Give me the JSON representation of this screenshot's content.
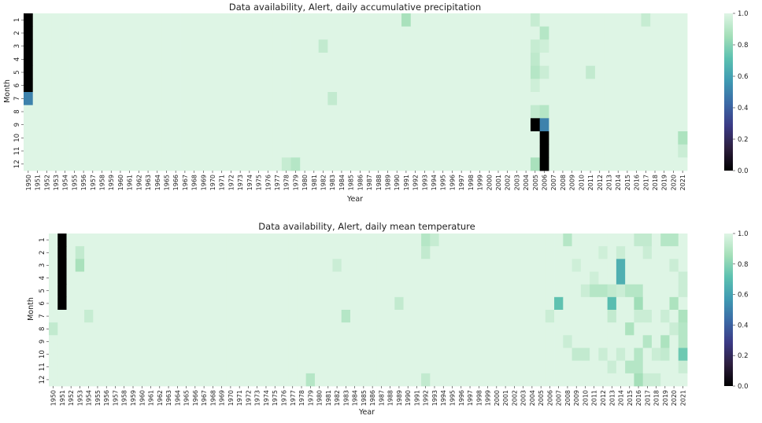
{
  "years": [
    "1950",
    "1951",
    "1952",
    "1953",
    "1954",
    "1955",
    "1956",
    "1957",
    "1958",
    "1959",
    "1960",
    "1961",
    "1962",
    "1963",
    "1964",
    "1965",
    "1966",
    "1967",
    "1968",
    "1969",
    "1970",
    "1971",
    "1972",
    "1973",
    "1974",
    "1975",
    "1976",
    "1977",
    "1978",
    "1979",
    "1980",
    "1981",
    "1982",
    "1983",
    "1984",
    "1985",
    "1986",
    "1987",
    "1988",
    "1989",
    "1990",
    "1991",
    "1992",
    "1993",
    "1994",
    "1995",
    "1996",
    "1997",
    "1998",
    "1999",
    "2000",
    "2001",
    "2002",
    "2003",
    "2004",
    "2005",
    "2006",
    "2007",
    "2008",
    "2009",
    "2010",
    "2011",
    "2012",
    "2013",
    "2014",
    "2015",
    "2016",
    "2017",
    "2018",
    "2019",
    "2020",
    "2021"
  ],
  "months": [
    "1",
    "2",
    "3",
    "4",
    "5",
    "6",
    "7",
    "8",
    "9",
    "10",
    "11",
    "12"
  ],
  "colorbar_ticks": [
    "0.0",
    "0.2",
    "0.4",
    "0.6",
    "0.8",
    "1.0"
  ],
  "colormap": [
    "#000000",
    "#2d1e3e",
    "#3b3a85",
    "#3b6aa6",
    "#3f9ab2",
    "#5cc1b0",
    "#a4dfb8",
    "#def5e5"
  ],
  "chart_data": [
    {
      "type": "heatmap",
      "title": "Data availability, Alert, daily accumulative precipitation",
      "xlabel": "Year",
      "ylabel": "Month",
      "vmin": 0.0,
      "vmax": 1.0,
      "default_value": 1.0,
      "cells": [
        {
          "year": "1950",
          "month": "1",
          "value": 0.0
        },
        {
          "year": "1950",
          "month": "2",
          "value": 0.0
        },
        {
          "year": "1950",
          "month": "3",
          "value": 0.0
        },
        {
          "year": "1950",
          "month": "4",
          "value": 0.0
        },
        {
          "year": "1950",
          "month": "5",
          "value": 0.0
        },
        {
          "year": "1950",
          "month": "6",
          "value": 0.0
        },
        {
          "year": "1950",
          "month": "7",
          "value": 0.5
        },
        {
          "year": "1991",
          "month": "1",
          "value": 0.87
        },
        {
          "year": "2005",
          "month": "1",
          "value": 0.94
        },
        {
          "year": "2017",
          "month": "1",
          "value": 0.94
        },
        {
          "year": "2006",
          "month": "2",
          "value": 0.9
        },
        {
          "year": "2005",
          "month": "3",
          "value": 0.94
        },
        {
          "year": "2006",
          "month": "3",
          "value": 0.96
        },
        {
          "year": "1982",
          "month": "3",
          "value": 0.93
        },
        {
          "year": "2005",
          "month": "4",
          "value": 0.92
        },
        {
          "year": "2005",
          "month": "5",
          "value": 0.9
        },
        {
          "year": "2006",
          "month": "5",
          "value": 0.95
        },
        {
          "year": "2011",
          "month": "5",
          "value": 0.93
        },
        {
          "year": "2005",
          "month": "6",
          "value": 0.96
        },
        {
          "year": "1983",
          "month": "7",
          "value": 0.93
        },
        {
          "year": "2005",
          "month": "8",
          "value": 0.93
        },
        {
          "year": "2006",
          "month": "8",
          "value": 0.9
        },
        {
          "year": "2005",
          "month": "9",
          "value": 0.0
        },
        {
          "year": "2006",
          "month": "9",
          "value": 0.5
        },
        {
          "year": "2006",
          "month": "10",
          "value": 0.0
        },
        {
          "year": "2006",
          "month": "11",
          "value": 0.0
        },
        {
          "year": "2006",
          "month": "12",
          "value": 0.0
        },
        {
          "year": "2021",
          "month": "10",
          "value": 0.88
        },
        {
          "year": "2021",
          "month": "11",
          "value": 0.95
        },
        {
          "year": "1978",
          "month": "12",
          "value": 0.94
        },
        {
          "year": "1979",
          "month": "12",
          "value": 0.9
        },
        {
          "year": "2005",
          "month": "12",
          "value": 0.87
        }
      ]
    },
    {
      "type": "heatmap",
      "title": "Data availability, Alert, daily mean temperature",
      "xlabel": "Year",
      "ylabel": "Month",
      "vmin": 0.0,
      "vmax": 1.0,
      "default_value": 1.0,
      "cells": [
        {
          "year": "1951",
          "month": "1",
          "value": 0.0
        },
        {
          "year": "1951",
          "month": "2",
          "value": 0.0
        },
        {
          "year": "1951",
          "month": "3",
          "value": 0.0
        },
        {
          "year": "1951",
          "month": "4",
          "value": 0.0
        },
        {
          "year": "1951",
          "month": "5",
          "value": 0.0
        },
        {
          "year": "1951",
          "month": "6",
          "value": 0.0
        },
        {
          "year": "1950",
          "month": "8",
          "value": 0.93
        },
        {
          "year": "1953",
          "month": "2",
          "value": 0.93
        },
        {
          "year": "1953",
          "month": "3",
          "value": 0.87
        },
        {
          "year": "1954",
          "month": "7",
          "value": 0.94
        },
        {
          "year": "1982",
          "month": "3",
          "value": 0.95
        },
        {
          "year": "1983",
          "month": "7",
          "value": 0.9
        },
        {
          "year": "1979",
          "month": "12",
          "value": 0.9
        },
        {
          "year": "1989",
          "month": "6",
          "value": 0.93
        },
        {
          "year": "1992",
          "month": "1",
          "value": 0.9
        },
        {
          "year": "1993",
          "month": "1",
          "value": 0.94
        },
        {
          "year": "1992",
          "month": "2",
          "value": 0.93
        },
        {
          "year": "1992",
          "month": "12",
          "value": 0.93
        },
        {
          "year": "2006",
          "month": "7",
          "value": 0.95
        },
        {
          "year": "2007",
          "month": "6",
          "value": 0.72
        },
        {
          "year": "2008",
          "month": "1",
          "value": 0.9
        },
        {
          "year": "2008",
          "month": "9",
          "value": 0.95
        },
        {
          "year": "2009",
          "month": "3",
          "value": 0.96
        },
        {
          "year": "2009",
          "month": "10",
          "value": 0.93
        },
        {
          "year": "2010",
          "month": "5",
          "value": 0.95
        },
        {
          "year": "2010",
          "month": "10",
          "value": 0.93
        },
        {
          "year": "2011",
          "month": "4",
          "value": 0.96
        },
        {
          "year": "2011",
          "month": "5",
          "value": 0.9
        },
        {
          "year": "2012",
          "month": "2",
          "value": 0.96
        },
        {
          "year": "2012",
          "month": "5",
          "value": 0.9
        },
        {
          "year": "2012",
          "month": "10",
          "value": 0.95
        },
        {
          "year": "2013",
          "month": "5",
          "value": 0.93
        },
        {
          "year": "2013",
          "month": "6",
          "value": 0.7
        },
        {
          "year": "2013",
          "month": "7",
          "value": 0.93
        },
        {
          "year": "2013",
          "month": "11",
          "value": 0.95
        },
        {
          "year": "2014",
          "month": "2",
          "value": 0.95
        },
        {
          "year": "2014",
          "month": "3",
          "value": 0.65
        },
        {
          "year": "2014",
          "month": "4",
          "value": 0.65
        },
        {
          "year": "2014",
          "month": "5",
          "value": 0.95
        },
        {
          "year": "2014",
          "month": "10",
          "value": 0.95
        },
        {
          "year": "2015",
          "month": "5",
          "value": 0.9
        },
        {
          "year": "2015",
          "month": "8",
          "value": 0.88
        },
        {
          "year": "2015",
          "month": "11",
          "value": 0.9
        },
        {
          "year": "2016",
          "month": "1",
          "value": 0.93
        },
        {
          "year": "2016",
          "month": "5",
          "value": 0.9
        },
        {
          "year": "2016",
          "month": "6",
          "value": 0.85
        },
        {
          "year": "2016",
          "month": "7",
          "value": 0.95
        },
        {
          "year": "2016",
          "month": "10",
          "value": 0.9
        },
        {
          "year": "2016",
          "month": "11",
          "value": 0.9
        },
        {
          "year": "2016",
          "month": "12",
          "value": 0.86
        },
        {
          "year": "2017",
          "month": "1",
          "value": 0.93
        },
        {
          "year": "2017",
          "month": "2",
          "value": 0.95
        },
        {
          "year": "2017",
          "month": "7",
          "value": 0.95
        },
        {
          "year": "2017",
          "month": "9",
          "value": 0.9
        },
        {
          "year": "2017",
          "month": "12",
          "value": 0.95
        },
        {
          "year": "2018",
          "month": "10",
          "value": 0.95
        },
        {
          "year": "2018",
          "month": "12",
          "value": 0.95
        },
        {
          "year": "2019",
          "month": "1",
          "value": 0.9
        },
        {
          "year": "2019",
          "month": "7",
          "value": 0.95
        },
        {
          "year": "2019",
          "month": "9",
          "value": 0.88
        },
        {
          "year": "2019",
          "month": "10",
          "value": 0.93
        },
        {
          "year": "2020",
          "month": "1",
          "value": 0.9
        },
        {
          "year": "2020",
          "month": "3",
          "value": 0.95
        },
        {
          "year": "2020",
          "month": "6",
          "value": 0.88
        },
        {
          "year": "2020",
          "month": "8",
          "value": 0.95
        },
        {
          "year": "2021",
          "month": "4",
          "value": 0.95
        },
        {
          "year": "2021",
          "month": "5",
          "value": 0.95
        },
        {
          "year": "2021",
          "month": "7",
          "value": 0.88
        },
        {
          "year": "2021",
          "month": "8",
          "value": 0.9
        },
        {
          "year": "2021",
          "month": "9",
          "value": 0.9
        },
        {
          "year": "2021",
          "month": "10",
          "value": 0.75
        },
        {
          "year": "2021",
          "month": "11",
          "value": 0.95
        }
      ]
    }
  ]
}
